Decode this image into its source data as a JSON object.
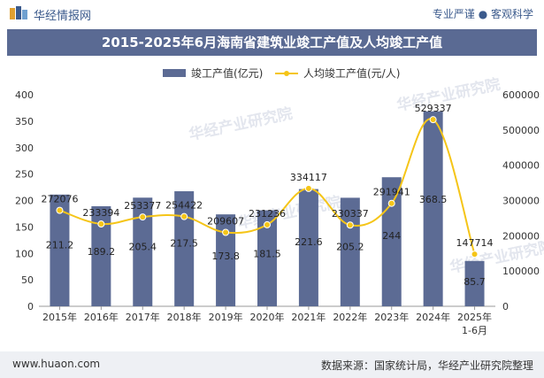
{
  "header": {
    "brand": "华经情报网",
    "tags": "专业严谨 ● 客观科学"
  },
  "footer": {
    "site": "www.huaon.com",
    "source": "数据来源：国家统计局，华经产业研究院整理"
  },
  "watermark": "华经产业研究院",
  "colors": {
    "bar": "#5c6b94",
    "line": "#f5c518",
    "title_bg": "#5a6a93"
  },
  "chart_data": {
    "type": "bar",
    "title": "2015-2025年6月海南省建筑业竣工产值及人均竣工产值",
    "categories": [
      "2015年",
      "2016年",
      "2017年",
      "2018年",
      "2019年",
      "2020年",
      "2021年",
      "2022年",
      "2023年",
      "2024年",
      "2025年\n1-6月"
    ],
    "series": [
      {
        "name": "竣工产值(亿元)",
        "type": "bar",
        "axis": "left",
        "values": [
          211.2,
          189.2,
          205.4,
          217.5,
          173.8,
          181.5,
          221.6,
          205.2,
          244,
          368.5,
          85.7
        ],
        "labels": [
          "211.2",
          "189.2",
          "205.4",
          "217.5",
          "173.8",
          "181.5",
          "221.6",
          "205.2",
          "244",
          "368.5",
          "85.7"
        ]
      },
      {
        "name": "人均竣工产值(元/人)",
        "type": "line",
        "axis": "right",
        "values": [
          272076,
          233394,
          253377,
          254422,
          209607,
          231236,
          334117,
          230337,
          291941,
          529337,
          147714
        ],
        "labels": [
          "272076",
          "233394",
          "253377",
          "254422",
          "209607",
          "231236",
          "334117",
          "230337",
          "291941",
          "529337",
          "147714"
        ]
      }
    ],
    "y_left": {
      "min": 0,
      "max": 400,
      "ticks": [
        "0",
        "50",
        "100",
        "150",
        "200",
        "250",
        "300",
        "350",
        "400"
      ]
    },
    "y_right": {
      "min": 0,
      "max": 600000,
      "ticks": [
        "0",
        "100000",
        "200000",
        "300000",
        "400000",
        "500000",
        "600000"
      ]
    },
    "legend_position": "top-center",
    "grid": false
  }
}
